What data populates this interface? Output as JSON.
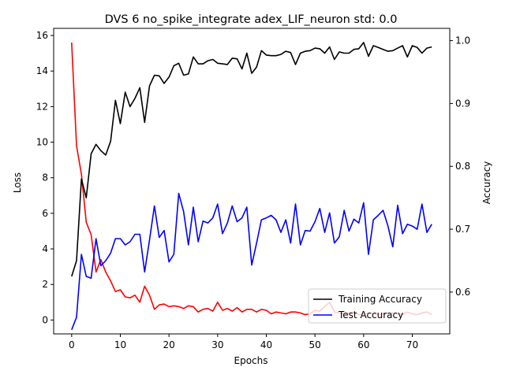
{
  "chart_data": {
    "type": "line",
    "title": "DVS 6 no_spike_integrate adex_LIF_neuron std: 0.0",
    "xlabel": "Epochs",
    "ylabel_left": "Loss",
    "ylabel_right": "Accuracy",
    "xlim": [
      -3.7,
      77.7
    ],
    "ylim_left": [
      -0.78,
      16.4
    ],
    "ylim_right": [
      0.5335,
      1.0195
    ],
    "x_ticks": [
      0,
      10,
      20,
      30,
      40,
      50,
      60,
      70
    ],
    "y_ticks_left": [
      0,
      2,
      4,
      6,
      8,
      10,
      12,
      14,
      16
    ],
    "y_ticks_right": [
      0.6,
      0.7,
      0.8,
      0.9,
      1.0
    ],
    "y_tick_labels_right": [
      "0.6",
      "0.7",
      "0.8",
      "0.9",
      "1.0"
    ],
    "legend_position": "lower right",
    "x": [
      0,
      1,
      2,
      3,
      4,
      5,
      6,
      7,
      8,
      9,
      10,
      11,
      12,
      13,
      14,
      15,
      16,
      17,
      18,
      19,
      20,
      21,
      22,
      23,
      24,
      25,
      26,
      27,
      28,
      29,
      30,
      31,
      32,
      33,
      34,
      35,
      36,
      37,
      38,
      39,
      40,
      41,
      42,
      43,
      44,
      45,
      46,
      47,
      48,
      49,
      50,
      51,
      52,
      53,
      54,
      55,
      56,
      57,
      58,
      59,
      60,
      61,
      62,
      63,
      64,
      65,
      66,
      67,
      68,
      69,
      70,
      71,
      72,
      73,
      74
    ],
    "series": [
      {
        "name": "Training Accuracy",
        "axis": "right",
        "color": "#000000",
        "in_legend": true,
        "values": [
          0.625,
          0.65,
          0.78,
          0.75,
          0.82,
          0.835,
          0.825,
          0.818,
          0.84,
          0.905,
          0.868,
          0.918,
          0.895,
          0.908,
          0.925,
          0.87,
          0.928,
          0.945,
          0.944,
          0.932,
          0.942,
          0.96,
          0.964,
          0.945,
          0.947,
          0.974,
          0.963,
          0.963,
          0.968,
          0.97,
          0.964,
          0.963,
          0.962,
          0.972,
          0.971,
          0.955,
          0.98,
          0.948,
          0.958,
          0.984,
          0.977,
          0.976,
          0.976,
          0.978,
          0.983,
          0.981,
          0.962,
          0.98,
          0.983,
          0.984,
          0.988,
          0.987,
          0.98,
          0.99,
          0.97,
          0.982,
          0.98,
          0.98,
          0.986,
          0.987,
          0.997,
          0.975,
          0.992,
          0.989,
          0.986,
          0.983,
          0.984,
          0.988,
          0.992,
          0.974,
          0.992,
          0.989,
          0.98,
          0.988,
          0.99
        ]
      },
      {
        "name": "Test Accuracy",
        "axis": "right",
        "color": "#0000ff",
        "in_legend": true,
        "values": [
          0.54,
          0.56,
          0.66,
          0.625,
          0.622,
          0.685,
          0.642,
          0.65,
          0.662,
          0.685,
          0.685,
          0.675,
          0.68,
          0.692,
          0.692,
          0.632,
          0.683,
          0.737,
          0.687,
          0.698,
          0.648,
          0.66,
          0.757,
          0.728,
          0.675,
          0.735,
          0.68,
          0.713,
          0.71,
          0.718,
          0.74,
          0.693,
          0.71,
          0.737,
          0.712,
          0.718,
          0.735,
          0.643,
          0.678,
          0.715,
          0.718,
          0.722,
          0.715,
          0.695,
          0.715,
          0.678,
          0.74,
          0.675,
          0.698,
          0.697,
          0.712,
          0.733,
          0.695,
          0.726,
          0.678,
          0.688,
          0.73,
          0.697,
          0.716,
          0.71,
          0.742,
          0.66,
          0.715,
          0.722,
          0.73,
          0.705,
          0.672,
          0.738,
          0.693,
          0.708,
          0.705,
          0.7,
          0.74,
          0.695,
          0.708
        ]
      },
      {
        "name": "Loss",
        "axis": "left",
        "color": "#ff0000",
        "in_legend": false,
        "values": [
          15.6,
          9.8,
          8.2,
          5.5,
          4.8,
          2.7,
          3.4,
          2.7,
          2.2,
          1.6,
          1.7,
          1.3,
          1.25,
          1.4,
          1.0,
          1.9,
          1.4,
          0.6,
          0.85,
          0.9,
          0.75,
          0.8,
          0.75,
          0.65,
          0.8,
          0.75,
          0.45,
          0.6,
          0.65,
          0.5,
          1.0,
          0.55,
          0.65,
          0.5,
          0.7,
          0.45,
          0.6,
          0.6,
          0.45,
          0.6,
          0.55,
          0.35,
          0.45,
          0.4,
          0.35,
          0.45,
          0.45,
          0.4,
          0.3,
          0.35,
          0.55,
          0.5,
          0.75,
          1.0,
          0.45,
          0.4,
          0.35,
          0.4,
          0.45,
          0.3,
          0.35,
          0.4,
          0.35,
          0.3,
          0.35,
          0.35,
          0.4,
          0.35,
          0.3,
          0.45,
          0.35,
          0.3,
          0.4,
          0.45,
          0.3
        ]
      }
    ]
  }
}
